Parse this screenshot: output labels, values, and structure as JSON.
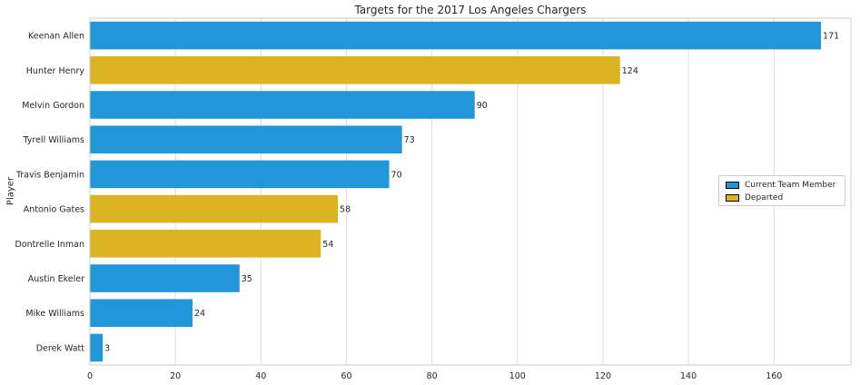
{
  "chart_data": {
    "type": "bar",
    "orientation": "horizontal",
    "title": "Targets for the 2017 Los Angeles Chargers",
    "ylabel": "Player",
    "xlabel": "",
    "xlim": [
      0,
      178
    ],
    "x_ticks": [
      0,
      20,
      40,
      60,
      80,
      100,
      120,
      140,
      160
    ],
    "grid": "vertical",
    "categories": [
      "Keenan Allen",
      "Hunter Henry",
      "Melvin Gordon",
      "Tyrell Williams",
      "Travis Benjamin",
      "Antonio Gates",
      "Dontrelle Inman",
      "Austin Ekeler",
      "Mike Williams",
      "Derek Watt"
    ],
    "values": [
      171,
      124,
      90,
      73,
      70,
      58,
      54,
      35,
      24,
      3
    ],
    "status": [
      "Current Team Member",
      "Departed",
      "Current Team Member",
      "Current Team Member",
      "Current Team Member",
      "Departed",
      "Departed",
      "Current Team Member",
      "Current Team Member",
      "Current Team Member"
    ],
    "legend": {
      "placement": "center-right",
      "entries": [
        {
          "label": "Current Team Member",
          "color": "#2196d9"
        },
        {
          "label": "Departed",
          "color": "#dcb321"
        }
      ]
    }
  }
}
